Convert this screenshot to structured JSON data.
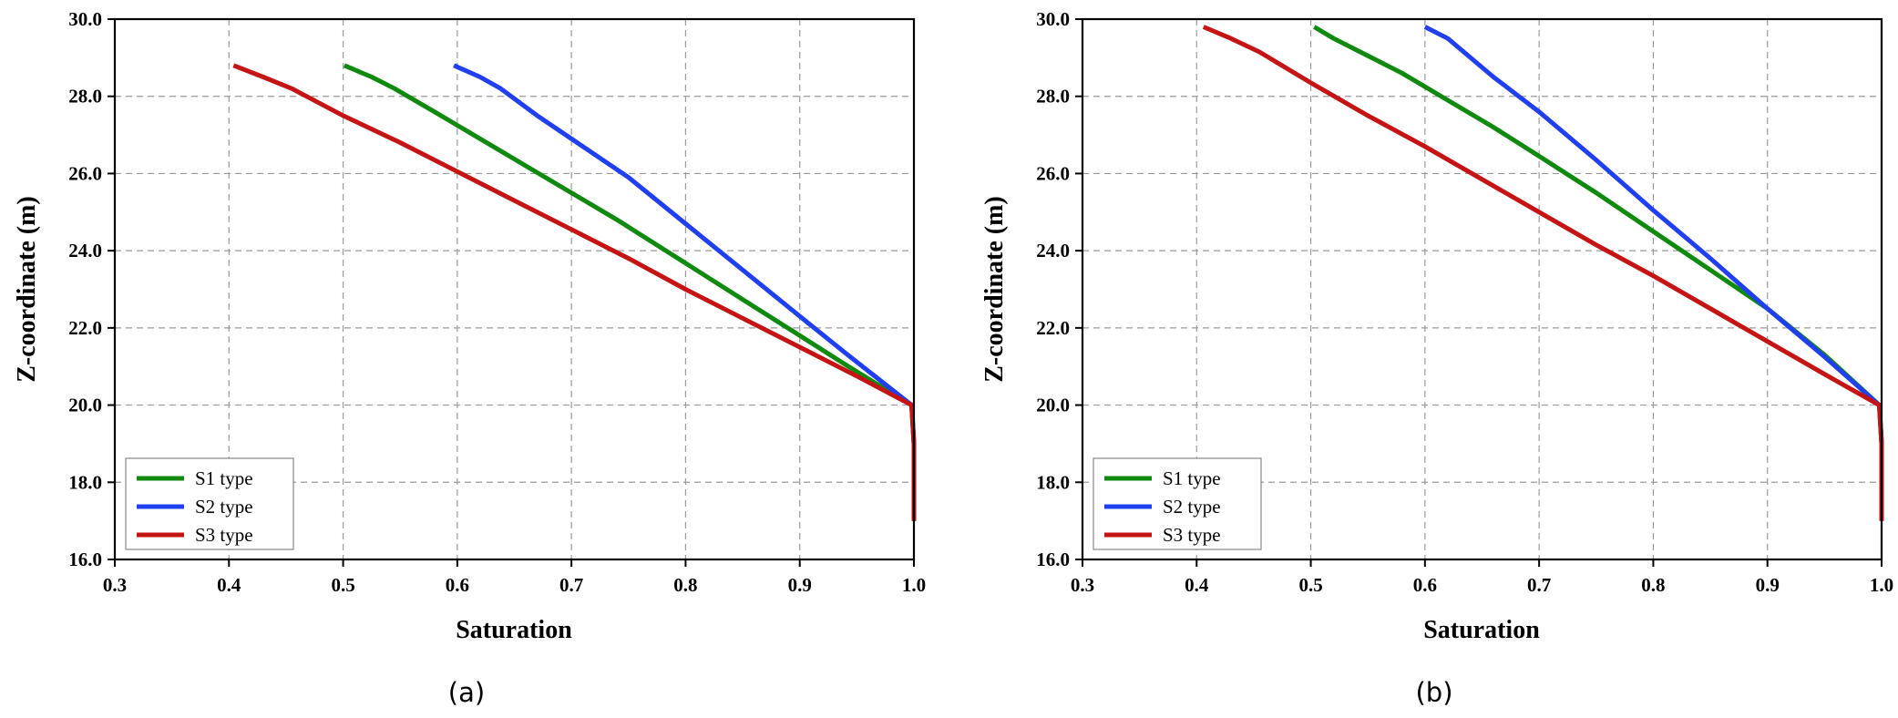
{
  "chart_data": [
    {
      "type": "line",
      "panel": "a",
      "caption": "(a)",
      "xlabel": "Saturation",
      "ylabel": "Z-coordinate (m)",
      "xlim": [
        0.3,
        1.0
      ],
      "ylim": [
        16.0,
        30.0
      ],
      "xticks": [
        0.3,
        0.4,
        0.5,
        0.6,
        0.7,
        0.8,
        0.9,
        1.0
      ],
      "xtick_labels": [
        "0.3",
        "0.4",
        "0.5",
        "0.6",
        "0.7",
        "0.8",
        "0.9",
        "1.0"
      ],
      "yticks": [
        16.0,
        18.0,
        20.0,
        22.0,
        24.0,
        26.0,
        28.0,
        30.0
      ],
      "ytick_labels": [
        "16.0",
        "18.0",
        "20.0",
        "22.0",
        "24.0",
        "26.0",
        "28.0",
        "30.0"
      ],
      "grid": true,
      "legend_position": "bottom-left",
      "series": [
        {
          "name": "S1 type",
          "color": "#0f8a0f",
          "x": [
            0.501,
            0.525,
            0.545,
            0.58,
            0.62,
            0.66,
            0.7,
            0.74,
            0.78,
            0.82,
            0.86,
            0.9,
            0.94,
            0.97,
            0.998,
            1.0,
            1.0,
            1.0
          ],
          "y": [
            28.8,
            28.5,
            28.2,
            27.6,
            26.9,
            26.2,
            25.5,
            24.8,
            24.05,
            23.3,
            22.55,
            21.8,
            21.05,
            20.5,
            20.0,
            19.0,
            18.0,
            17.0
          ]
        },
        {
          "name": "S2 type",
          "color": "#1f3ff0",
          "x": [
            0.597,
            0.62,
            0.638,
            0.67,
            0.71,
            0.75,
            0.8,
            0.85,
            0.9,
            0.94,
            0.97,
            0.998,
            1.0,
            1.0,
            1.0
          ],
          "y": [
            28.8,
            28.5,
            28.2,
            27.5,
            26.7,
            25.9,
            24.7,
            23.5,
            22.3,
            21.35,
            20.65,
            20.0,
            19.0,
            18.0,
            17.0
          ]
        },
        {
          "name": "S3 type",
          "color": "#c41414",
          "x": [
            0.404,
            0.43,
            0.455,
            0.5,
            0.55,
            0.6,
            0.65,
            0.7,
            0.75,
            0.8,
            0.85,
            0.9,
            0.95,
            0.998,
            1.0,
            1.0,
            1.0
          ],
          "y": [
            28.8,
            28.5,
            28.2,
            27.5,
            26.8,
            26.05,
            25.3,
            24.55,
            23.8,
            23.0,
            22.25,
            21.5,
            20.75,
            20.0,
            19.0,
            18.0,
            17.0
          ]
        }
      ]
    },
    {
      "type": "line",
      "panel": "b",
      "caption": "(b)",
      "xlabel": "Saturation",
      "ylabel": "Z-coordinate (m)",
      "xlim": [
        0.3,
        1.0
      ],
      "ylim": [
        16.0,
        30.0
      ],
      "xticks": [
        0.3,
        0.4,
        0.5,
        0.6,
        0.7,
        0.8,
        0.9,
        1.0
      ],
      "xtick_labels": [
        "0.3",
        "0.4",
        "0.5",
        "0.6",
        "0.7",
        "0.8",
        "0.9",
        "1.0"
      ],
      "yticks": [
        16.0,
        18.0,
        20.0,
        22.0,
        24.0,
        26.0,
        28.0,
        30.0
      ],
      "ytick_labels": [
        "16.0",
        "18.0",
        "20.0",
        "22.0",
        "24.0",
        "26.0",
        "28.0",
        "30.0"
      ],
      "grid": true,
      "legend_position": "bottom-left",
      "series": [
        {
          "name": "S1 type",
          "color": "#0f8a0f",
          "x": [
            0.503,
            0.52,
            0.54,
            0.58,
            0.62,
            0.66,
            0.7,
            0.75,
            0.8,
            0.85,
            0.9,
            0.95,
            0.998,
            1.0,
            1.0,
            1.0
          ],
          "y": [
            29.8,
            29.5,
            29.2,
            28.6,
            27.9,
            27.2,
            26.45,
            25.5,
            24.5,
            23.5,
            22.5,
            21.3,
            20.0,
            19.0,
            18.0,
            17.0
          ]
        },
        {
          "name": "S2 type",
          "color": "#1f3ff0",
          "x": [
            0.6,
            0.62,
            0.632,
            0.66,
            0.7,
            0.75,
            0.8,
            0.85,
            0.9,
            0.95,
            0.998,
            1.0,
            1.0,
            1.0
          ],
          "y": [
            29.8,
            29.5,
            29.2,
            28.5,
            27.6,
            26.35,
            25.05,
            23.8,
            22.5,
            21.25,
            20.0,
            19.0,
            18.0,
            17.0
          ]
        },
        {
          "name": "S3 type",
          "color": "#c41414",
          "x": [
            0.406,
            0.43,
            0.455,
            0.5,
            0.55,
            0.6,
            0.65,
            0.7,
            0.75,
            0.8,
            0.85,
            0.9,
            0.95,
            0.998,
            1.0,
            1.0,
            1.0
          ],
          "y": [
            29.8,
            29.5,
            29.15,
            28.35,
            27.5,
            26.7,
            25.85,
            25.0,
            24.15,
            23.35,
            22.5,
            21.65,
            20.8,
            20.0,
            19.0,
            18.0,
            17.0
          ]
        }
      ]
    }
  ]
}
